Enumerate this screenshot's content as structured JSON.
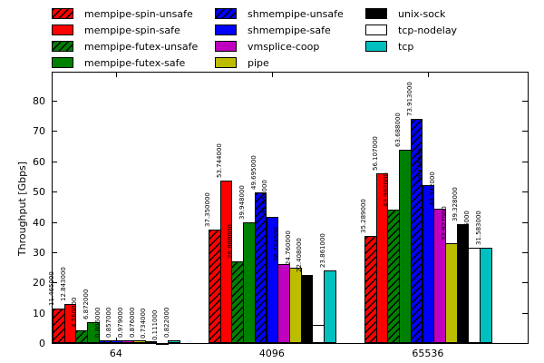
{
  "chart_data": {
    "type": "bar",
    "title": "",
    "xlabel": "",
    "ylabel": "Throughput [Gbps]",
    "categories": [
      "64",
      "4096",
      "65536"
    ],
    "yticks": [
      0,
      10,
      20,
      30,
      40,
      50,
      60,
      70,
      80
    ],
    "ylim": [
      0,
      89.6
    ],
    "grid": false,
    "legend_position": "top, 3 columns, outside plot",
    "bar_value_labels": "rotated 90deg above each bar, 6 decimal places",
    "series": [
      {
        "name": "mempipe-spin-unsafe",
        "color": "#ff0000",
        "hatch": true,
        "values": [
          11.465,
          37.35,
          35.289
        ]
      },
      {
        "name": "mempipe-spin-safe",
        "color": "#ff0000",
        "hatch": false,
        "values": [
          12.843,
          53.744,
          56.107
        ]
      },
      {
        "name": "mempipe-futex-unsafe",
        "color": "#008000",
        "hatch": true,
        "values": [
          4.26,
          26.888,
          43.992
        ]
      },
      {
        "name": "mempipe-futex-safe",
        "color": "#008000",
        "hatch": false,
        "values": [
          6.872,
          39.948,
          63.688
        ]
      },
      {
        "name": "shmempipe-unsafe",
        "color": "#0000ff",
        "hatch": true,
        "values": [
          0.806,
          49.695,
          73.913
        ]
      },
      {
        "name": "shmempipe-safe",
        "color": "#0000ff",
        "hatch": false,
        "values": [
          0.857,
          41.654,
          52.148
        ]
      },
      {
        "name": "vmsplice-coop",
        "color": "#bf00bf",
        "hatch": false,
        "values": [
          0.979,
          26.024,
          44.342
        ]
      },
      {
        "name": "pipe",
        "color": "#bdbd00",
        "hatch": false,
        "values": [
          0.876,
          24.76,
          32.927
        ]
      },
      {
        "name": "unix-sock",
        "color": "#000000",
        "hatch": false,
        "values": [
          0.734,
          22.408,
          39.328
        ]
      },
      {
        "name": "tcp-nodelay",
        "color": "#ffffff",
        "hatch": false,
        "values": [
          0.111,
          6.01,
          31.456
        ]
      },
      {
        "name": "tcp",
        "color": "#00bfbf",
        "hatch": false,
        "values": [
          0.822,
          23.861,
          31.583
        ]
      }
    ],
    "legend_columns": [
      [
        "mempipe-spin-unsafe",
        "mempipe-spin-safe",
        "mempipe-futex-unsafe",
        "mempipe-futex-safe"
      ],
      [
        "shmempipe-unsafe",
        "shmempipe-safe",
        "vmsplice-coop",
        "pipe"
      ],
      [
        "unix-sock",
        "tcp-nodelay",
        "tcp"
      ]
    ]
  }
}
